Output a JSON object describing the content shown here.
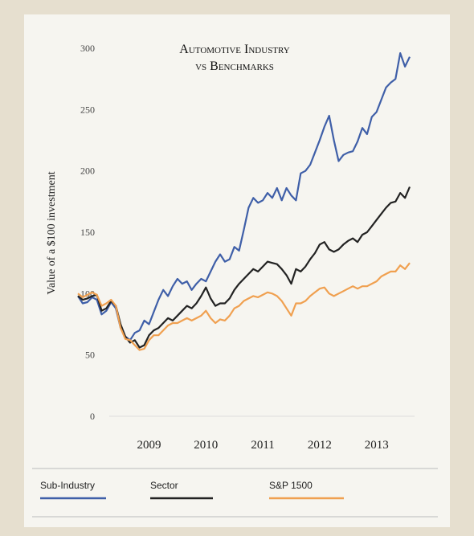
{
  "chart_data": {
    "type": "line",
    "title": [
      "Automotive Industry",
      "vs Benchmarks"
    ],
    "y_label": "Value of a $100 investment",
    "categories": [
      null,
      null,
      null,
      null,
      null,
      null,
      null,
      null,
      null,
      null,
      null,
      null,
      null,
      null,
      null,
      "2009",
      null,
      null,
      null,
      null,
      null,
      null,
      null,
      null,
      null,
      null,
      null,
      "2010",
      null,
      null,
      null,
      null,
      null,
      null,
      null,
      null,
      null,
      null,
      null,
      "2011",
      null,
      null,
      null,
      null,
      null,
      null,
      null,
      null,
      null,
      null,
      null,
      "2012",
      null,
      null,
      null,
      null,
      null,
      null,
      null,
      null,
      null,
      null,
      null,
      "2013",
      null,
      null,
      null,
      null,
      null,
      null,
      null
    ],
    "series": [
      {
        "name": "Sub-Industry",
        "color": "#3f5fa8",
        "values": [
          98,
          92,
          93,
          97,
          95,
          83,
          86,
          93,
          88,
          72,
          65,
          62,
          68,
          70,
          78,
          75,
          85,
          95,
          103,
          98,
          106,
          112,
          108,
          110,
          103,
          108,
          112,
          110,
          118,
          126,
          132,
          126,
          128,
          138,
          135,
          152,
          170,
          178,
          174,
          176,
          182,
          178,
          186,
          176,
          186,
          180,
          176,
          198,
          200,
          205,
          215,
          225,
          236,
          245,
          225,
          208,
          213,
          215,
          216,
          224,
          235,
          230,
          244,
          248,
          258,
          268,
          272,
          275,
          296,
          285,
          293
        ]
      },
      {
        "name": "Sector",
        "color": "#222222",
        "values": [
          98,
          95,
          96,
          98,
          99,
          86,
          88,
          94,
          90,
          75,
          65,
          60,
          62,
          56,
          58,
          66,
          70,
          72,
          76,
          80,
          78,
          82,
          86,
          90,
          88,
          92,
          98,
          105,
          96,
          90,
          92,
          92,
          96,
          103,
          108,
          112,
          116,
          120,
          118,
          122,
          126,
          125,
          124,
          120,
          115,
          108,
          120,
          118,
          122,
          128,
          133,
          140,
          142,
          136,
          134,
          136,
          140,
          143,
          145,
          142,
          148,
          150,
          155,
          160,
          165,
          170,
          174,
          175,
          182,
          178,
          187
        ]
      },
      {
        "name": "S&P 1500",
        "color": "#f0a050",
        "values": [
          100,
          97,
          99,
          101,
          99,
          90,
          92,
          95,
          90,
          72,
          63,
          62,
          58,
          54,
          55,
          62,
          66,
          66,
          70,
          74,
          76,
          76,
          78,
          80,
          78,
          80,
          82,
          86,
          80,
          76,
          79,
          78,
          82,
          88,
          90,
          94,
          96,
          98,
          97,
          99,
          101,
          100,
          98,
          94,
          88,
          82,
          92,
          92,
          94,
          98,
          101,
          104,
          105,
          100,
          98,
          100,
          102,
          104,
          106,
          104,
          106,
          106,
          108,
          110,
          114,
          116,
          118,
          118,
          123,
          120,
          125
        ]
      }
    ],
    "ylim": [
      0,
      300
    ],
    "yticks": [
      0,
      50,
      100,
      150,
      200,
      250,
      300
    ],
    "grid": false,
    "legend": "bottom"
  }
}
